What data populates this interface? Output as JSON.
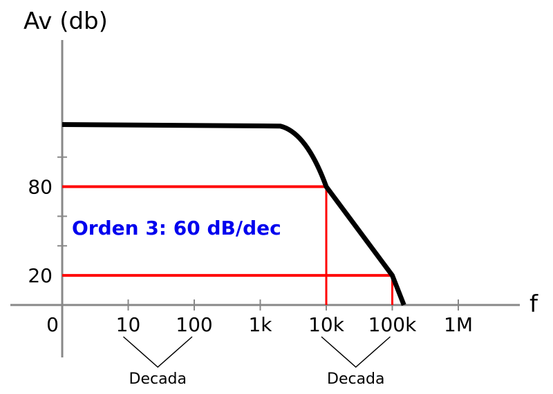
{
  "chart_data": {
    "type": "line",
    "ylabel": "Av (db)",
    "xlabel": "f",
    "x_scale": "log",
    "x_ticks": [
      {
        "label": "0",
        "value": 1
      },
      {
        "label": "10",
        "value": 10
      },
      {
        "label": "100",
        "value": 100
      },
      {
        "label": "1k",
        "value": 1000
      },
      {
        "label": "10k",
        "value": 10000
      },
      {
        "label": "100k",
        "value": 100000
      },
      {
        "label": "1M",
        "value": 1000000
      }
    ],
    "y_ticks": [
      {
        "label": "20",
        "value": 20
      },
      {
        "label": "80",
        "value": 80
      }
    ],
    "y_minor_ticks": [
      40,
      60,
      100
    ],
    "ylim": [
      0,
      120
    ],
    "xlim": [
      1,
      1000000
    ],
    "series": [
      {
        "color": "#000000",
        "points": [
          {
            "x": 1,
            "y": 122
          },
          {
            "x": 2000,
            "y": 121
          },
          {
            "x": 5000,
            "y": 113
          },
          {
            "x": 10000,
            "y": 80
          },
          {
            "x": 100000,
            "y": 20
          },
          {
            "x": 150000,
            "y": 0
          }
        ]
      }
    ],
    "guides": [
      {
        "type": "hline",
        "y": 80,
        "x_to": 10000,
        "color": "#ff0000"
      },
      {
        "type": "hline",
        "y": 20,
        "x_to": 100000,
        "color": "#ff0000"
      },
      {
        "type": "vline",
        "x": 10000,
        "y_to": 80,
        "color": "#ff0000"
      },
      {
        "type": "vline",
        "x": 100000,
        "y_to": 20,
        "color": "#ff0000"
      }
    ],
    "annotation": {
      "text": "Orden 3: 60 dB/dec",
      "color": "#0000ee"
    },
    "braces": [
      {
        "label": "Decada",
        "from": 10,
        "to": 100
      },
      {
        "label": "Decada",
        "from": 10000,
        "to": 100000
      }
    ]
  }
}
